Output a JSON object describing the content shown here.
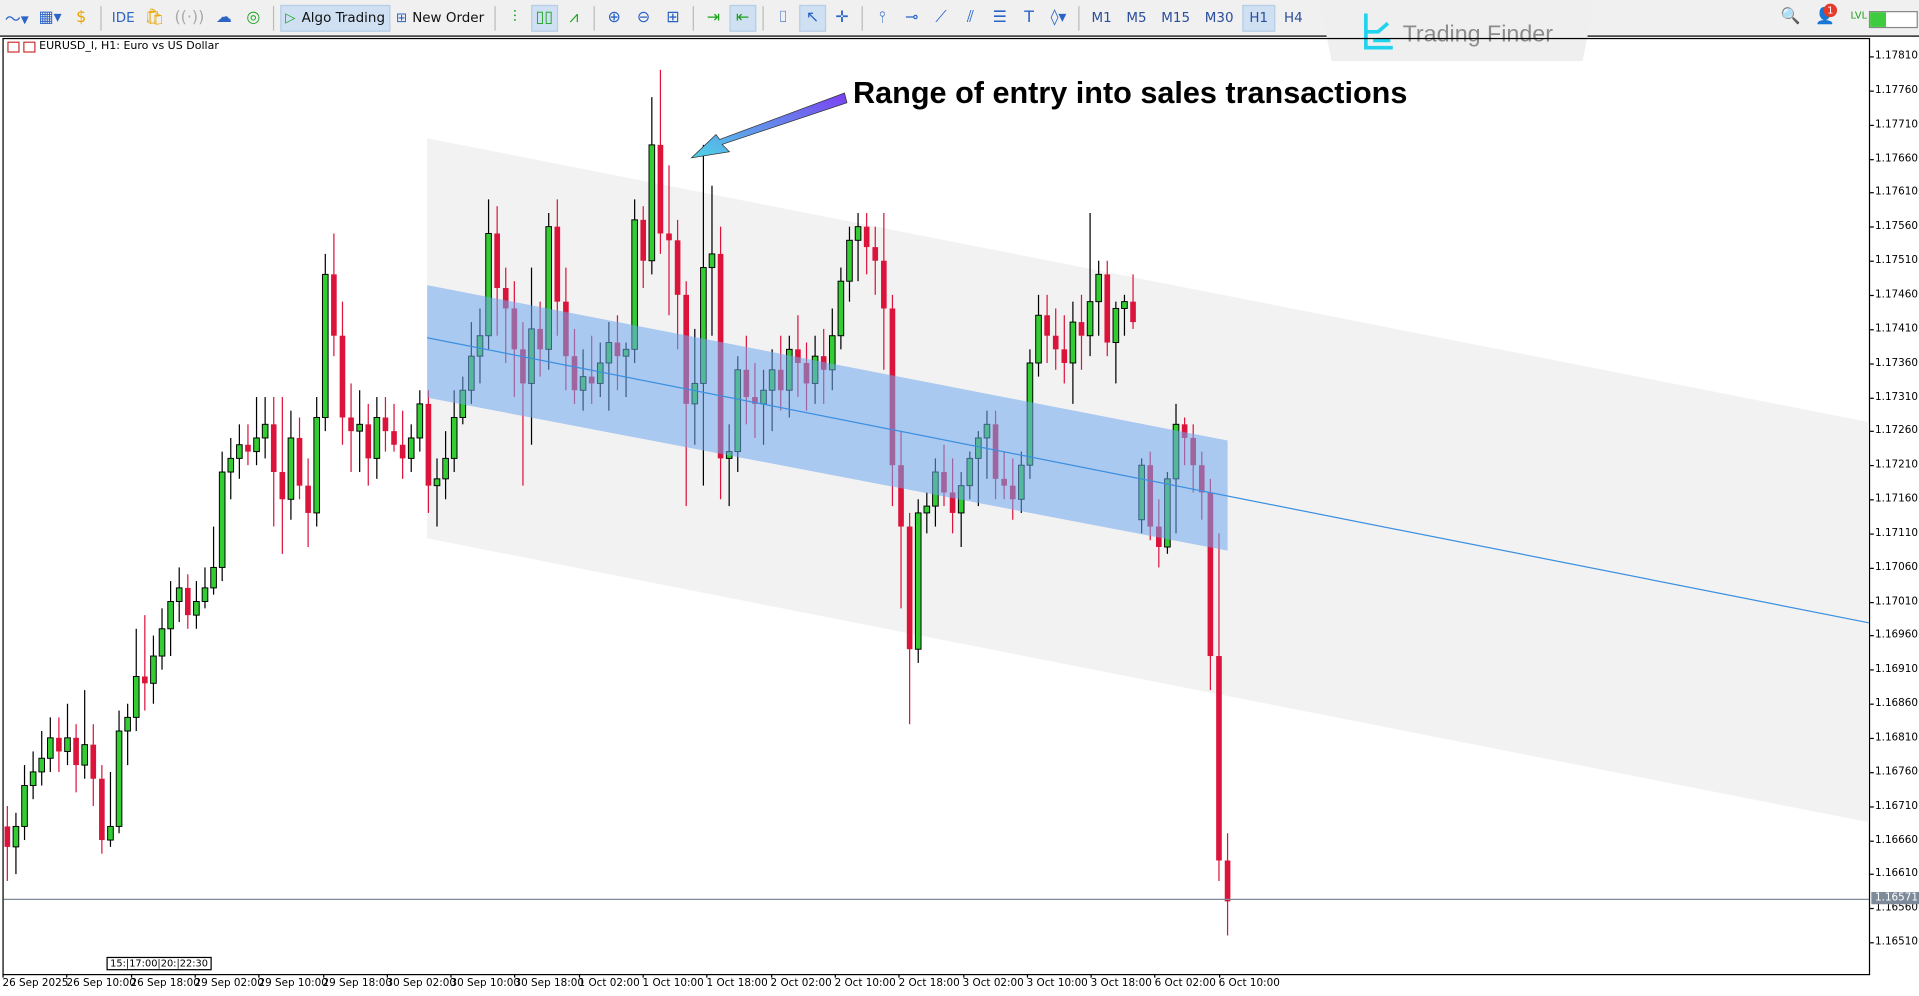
{
  "toolbar": {
    "algo_trading": "Algo Trading",
    "new_order": "New Order",
    "ide": "IDE",
    "timeframes": [
      "M1",
      "M5",
      "M15",
      "M30",
      "H1",
      "H4"
    ],
    "active_timeframe": "H1",
    "notification_count": "1",
    "level_label": "LVL"
  },
  "chart": {
    "title": "EURUSD_l, H1:  Euro vs US Dollar",
    "annotation": "Range of entry into sales transactions",
    "watermark": "Trading Finder",
    "current_price": "1.16571",
    "time_box": "15:|17:00|20:|22:30"
  },
  "colors": {
    "bull": "#33cc33",
    "bear": "#dc143c",
    "channel": "#f2f2f2",
    "zone": "#6fa8ee",
    "midline": "#3b8fe0",
    "arrow_start": "#7b3ff2",
    "arrow_end": "#4fd3e6",
    "brand": "#22d3f0"
  },
  "chart_data": {
    "type": "candlestick",
    "symbol": "EURUSD_l",
    "timeframe": "H1",
    "y_ticks": [
      "1.17810",
      "1.17760",
      "1.17710",
      "1.17660",
      "1.17610",
      "1.17560",
      "1.17510",
      "1.17460",
      "1.17410",
      "1.17360",
      "1.17310",
      "1.17260",
      "1.17210",
      "1.17160",
      "1.17110",
      "1.17060",
      "1.17010",
      "1.16960",
      "1.16910",
      "1.16860",
      "1.16810",
      "1.16760",
      "1.16710",
      "1.16660",
      "1.16610",
      "1.16560",
      "1.16510"
    ],
    "x_ticks": [
      "26 Sep 2025",
      "26 Sep 10:00",
      "26 Sep 18:00",
      "29 Sep 02:00",
      "29 Sep 10:00",
      "29 Sep 18:00",
      "30 Sep 02:00",
      "30 Sep 10:00",
      "30 Sep 18:00",
      "1 Oct 02:00",
      "1 Oct 10:00",
      "1 Oct 18:00",
      "2 Oct 02:00",
      "2 Oct 10:00",
      "2 Oct 18:00",
      "3 Oct 02:00",
      "3 Oct 10:00",
      "3 Oct 18:00",
      "6 Oct 02:00",
      "6 Oct 10:00"
    ],
    "ylim": [
      1.165,
      1.1784
    ],
    "ohlc": [
      [
        1.1668,
        1.1671,
        1.166,
        1.1665
      ],
      [
        1.1665,
        1.167,
        1.1661,
        1.1668
      ],
      [
        1.1668,
        1.1677,
        1.1666,
        1.1674
      ],
      [
        1.1674,
        1.1679,
        1.1672,
        1.1676
      ],
      [
        1.1676,
        1.1682,
        1.1674,
        1.1678
      ],
      [
        1.1678,
        1.1684,
        1.1676,
        1.1681
      ],
      [
        1.1681,
        1.1684,
        1.1676,
        1.1679
      ],
      [
        1.1679,
        1.1686,
        1.1677,
        1.1681
      ],
      [
        1.1681,
        1.1683,
        1.1673,
        1.1677
      ],
      [
        1.1677,
        1.1688,
        1.1675,
        1.168
      ],
      [
        1.168,
        1.1683,
        1.1671,
        1.1675
      ],
      [
        1.1675,
        1.1677,
        1.1664,
        1.1666
      ],
      [
        1.1666,
        1.1676,
        1.1665,
        1.1668
      ],
      [
        1.1668,
        1.1685,
        1.1667,
        1.1682
      ],
      [
        1.1682,
        1.1686,
        1.1677,
        1.1684
      ],
      [
        1.1684,
        1.1697,
        1.1682,
        1.169
      ],
      [
        1.169,
        1.1699,
        1.1685,
        1.1689
      ],
      [
        1.1689,
        1.1696,
        1.1686,
        1.1693
      ],
      [
        1.1693,
        1.17,
        1.1691,
        1.1697
      ],
      [
        1.1697,
        1.1704,
        1.1693,
        1.1701
      ],
      [
        1.1701,
        1.1706,
        1.1698,
        1.1703
      ],
      [
        1.1703,
        1.1705,
        1.1697,
        1.1699
      ],
      [
        1.1699,
        1.1704,
        1.1697,
        1.1701
      ],
      [
        1.1701,
        1.1706,
        1.17,
        1.1703
      ],
      [
        1.1703,
        1.1712,
        1.1702,
        1.1706
      ],
      [
        1.1706,
        1.1723,
        1.1704,
        1.172
      ],
      [
        1.172,
        1.1725,
        1.1716,
        1.1722
      ],
      [
        1.1722,
        1.1727,
        1.1719,
        1.1724
      ],
      [
        1.1724,
        1.1727,
        1.1721,
        1.1723
      ],
      [
        1.1723,
        1.1731,
        1.1721,
        1.1725
      ],
      [
        1.1725,
        1.1731,
        1.1722,
        1.1727
      ],
      [
        1.1727,
        1.1731,
        1.1712,
        1.172
      ],
      [
        1.172,
        1.1731,
        1.1708,
        1.1716
      ],
      [
        1.1716,
        1.1729,
        1.1713,
        1.1725
      ],
      [
        1.1725,
        1.1728,
        1.1716,
        1.1718
      ],
      [
        1.1718,
        1.1722,
        1.1709,
        1.1714
      ],
      [
        1.1714,
        1.1731,
        1.1712,
        1.1728
      ],
      [
        1.1728,
        1.1752,
        1.1726,
        1.1749
      ],
      [
        1.1749,
        1.1755,
        1.1737,
        1.174
      ],
      [
        1.174,
        1.1745,
        1.1724,
        1.1728
      ],
      [
        1.1728,
        1.1733,
        1.172,
        1.1726
      ],
      [
        1.1726,
        1.1732,
        1.172,
        1.1727
      ],
      [
        1.1727,
        1.173,
        1.1718,
        1.1722
      ],
      [
        1.1722,
        1.1731,
        1.1719,
        1.1728
      ],
      [
        1.1728,
        1.1731,
        1.1723,
        1.1726
      ],
      [
        1.1726,
        1.173,
        1.1723,
        1.1724
      ],
      [
        1.1724,
        1.1729,
        1.1719,
        1.1722
      ],
      [
        1.1722,
        1.1727,
        1.172,
        1.1725
      ],
      [
        1.1725,
        1.1732,
        1.1723,
        1.173
      ],
      [
        1.173,
        1.1732,
        1.1714,
        1.1718
      ],
      [
        1.1718,
        1.1722,
        1.1712,
        1.1719
      ],
      [
        1.1719,
        1.1726,
        1.1716,
        1.1722
      ],
      [
        1.1722,
        1.1732,
        1.172,
        1.1728
      ],
      [
        1.1728,
        1.1734,
        1.1727,
        1.1732
      ],
      [
        1.1732,
        1.1742,
        1.173,
        1.1737
      ],
      [
        1.1737,
        1.1744,
        1.1733,
        1.174
      ],
      [
        1.174,
        1.176,
        1.1738,
        1.1755
      ],
      [
        1.1755,
        1.1759,
        1.174,
        1.1747
      ],
      [
        1.1747,
        1.175,
        1.1736,
        1.1744
      ],
      [
        1.1744,
        1.1748,
        1.1731,
        1.1738
      ],
      [
        1.1738,
        1.1742,
        1.1718,
        1.1733
      ],
      [
        1.1733,
        1.175,
        1.1724,
        1.1741
      ],
      [
        1.1741,
        1.1745,
        1.1734,
        1.1738
      ],
      [
        1.1738,
        1.1758,
        1.1735,
        1.1756
      ],
      [
        1.1756,
        1.176,
        1.174,
        1.1745
      ],
      [
        1.1745,
        1.175,
        1.1732,
        1.1737
      ],
      [
        1.1737,
        1.1741,
        1.173,
        1.1732
      ],
      [
        1.1732,
        1.1738,
        1.1729,
        1.1734
      ],
      [
        1.1734,
        1.174,
        1.173,
        1.1733
      ],
      [
        1.1733,
        1.1739,
        1.1731,
        1.1736
      ],
      [
        1.1736,
        1.1742,
        1.1729,
        1.1739
      ],
      [
        1.1739,
        1.1743,
        1.1732,
        1.1737
      ],
      [
        1.1737,
        1.1739,
        1.1731,
        1.1738
      ],
      [
        1.1738,
        1.176,
        1.1736,
        1.1757
      ],
      [
        1.1757,
        1.1759,
        1.1747,
        1.1751
      ],
      [
        1.1751,
        1.1775,
        1.1749,
        1.1768
      ],
      [
        1.1768,
        1.1779,
        1.1752,
        1.1755
      ],
      [
        1.1755,
        1.1765,
        1.1743,
        1.1754
      ],
      [
        1.1754,
        1.1757,
        1.1738,
        1.1746
      ],
      [
        1.1746,
        1.1748,
        1.1715,
        1.173
      ],
      [
        1.173,
        1.1741,
        1.1724,
        1.1733
      ],
      [
        1.1733,
        1.1768,
        1.1718,
        1.175
      ],
      [
        1.175,
        1.1762,
        1.174,
        1.1752
      ],
      [
        1.1752,
        1.1756,
        1.1716,
        1.1722
      ],
      [
        1.1722,
        1.1727,
        1.1715,
        1.1723
      ],
      [
        1.1723,
        1.1737,
        1.172,
        1.1735
      ],
      [
        1.1735,
        1.174,
        1.1727,
        1.1731
      ],
      [
        1.1731,
        1.1736,
        1.1725,
        1.173
      ],
      [
        1.173,
        1.1735,
        1.1724,
        1.1732
      ],
      [
        1.1732,
        1.1738,
        1.1726,
        1.1735
      ],
      [
        1.1735,
        1.174,
        1.1729,
        1.1732
      ],
      [
        1.1732,
        1.174,
        1.1728,
        1.1738
      ],
      [
        1.1738,
        1.1743,
        1.1731,
        1.1736
      ],
      [
        1.1736,
        1.1739,
        1.1729,
        1.1733
      ],
      [
        1.1733,
        1.174,
        1.173,
        1.1737
      ],
      [
        1.1737,
        1.1741,
        1.173,
        1.1735
      ],
      [
        1.1735,
        1.1744,
        1.1732,
        1.174
      ],
      [
        1.174,
        1.175,
        1.1738,
        1.1748
      ],
      [
        1.1748,
        1.1756,
        1.1745,
        1.1754
      ],
      [
        1.1754,
        1.1758,
        1.1748,
        1.1756
      ],
      [
        1.1756,
        1.1758,
        1.1749,
        1.1753
      ],
      [
        1.1753,
        1.1756,
        1.1746,
        1.1751
      ],
      [
        1.1751,
        1.1758,
        1.1735,
        1.1744
      ],
      [
        1.1744,
        1.1746,
        1.1715,
        1.1721
      ],
      [
        1.1721,
        1.1726,
        1.17,
        1.1712
      ],
      [
        1.1712,
        1.1714,
        1.1683,
        1.1694
      ],
      [
        1.1694,
        1.1716,
        1.1692,
        1.1714
      ],
      [
        1.1714,
        1.1717,
        1.1711,
        1.1715
      ],
      [
        1.1715,
        1.1722,
        1.1712,
        1.172
      ],
      [
        1.172,
        1.1724,
        1.1715,
        1.1717
      ],
      [
        1.1717,
        1.1722,
        1.1711,
        1.1714
      ],
      [
        1.1714,
        1.172,
        1.1709,
        1.1718
      ],
      [
        1.1718,
        1.1723,
        1.1716,
        1.1722
      ],
      [
        1.1722,
        1.1726,
        1.1715,
        1.1725
      ],
      [
        1.1725,
        1.1729,
        1.1719,
        1.1727
      ],
      [
        1.1727,
        1.1729,
        1.1716,
        1.1719
      ],
      [
        1.1719,
        1.1723,
        1.1716,
        1.1718
      ],
      [
        1.1718,
        1.1722,
        1.1713,
        1.1716
      ],
      [
        1.1716,
        1.1723,
        1.1714,
        1.1721
      ],
      [
        1.1721,
        1.1738,
        1.1719,
        1.1736
      ],
      [
        1.1736,
        1.1746,
        1.1734,
        1.1743
      ],
      [
        1.1743,
        1.1746,
        1.1736,
        1.174
      ],
      [
        1.174,
        1.1744,
        1.1735,
        1.1738
      ],
      [
        1.1738,
        1.1743,
        1.1733,
        1.1736
      ],
      [
        1.1736,
        1.1745,
        1.173,
        1.1742
      ],
      [
        1.1742,
        1.1746,
        1.1735,
        1.174
      ],
      [
        1.174,
        1.1758,
        1.1737,
        1.1745
      ],
      [
        1.1745,
        1.1751,
        1.174,
        1.1749
      ],
      [
        1.1749,
        1.1751,
        1.1737,
        1.1739
      ],
      [
        1.1739,
        1.1745,
        1.1733,
        1.1744
      ],
      [
        1.1744,
        1.1746,
        1.174,
        1.1745
      ],
      [
        1.1745,
        1.1749,
        1.1741,
        1.1742
      ],
      [
        1.1713,
        1.1722,
        1.1711,
        1.1721
      ],
      [
        1.1721,
        1.1723,
        1.171,
        1.1712
      ],
      [
        1.1712,
        1.1716,
        1.1706,
        1.1709
      ],
      [
        1.1709,
        1.172,
        1.1708,
        1.1719
      ],
      [
        1.1719,
        1.173,
        1.1711,
        1.1727
      ],
      [
        1.1727,
        1.1728,
        1.1721,
        1.1725
      ],
      [
        1.1725,
        1.1727,
        1.1717,
        1.1721
      ],
      [
        1.1721,
        1.1723,
        1.1713,
        1.1717
      ],
      [
        1.1717,
        1.1719,
        1.1688,
        1.1693
      ],
      [
        1.1693,
        1.1711,
        1.166,
        1.1663
      ],
      [
        1.1663,
        1.1667,
        1.1652,
        1.1657
      ]
    ],
    "last_price": 1.16571,
    "grid": false
  }
}
